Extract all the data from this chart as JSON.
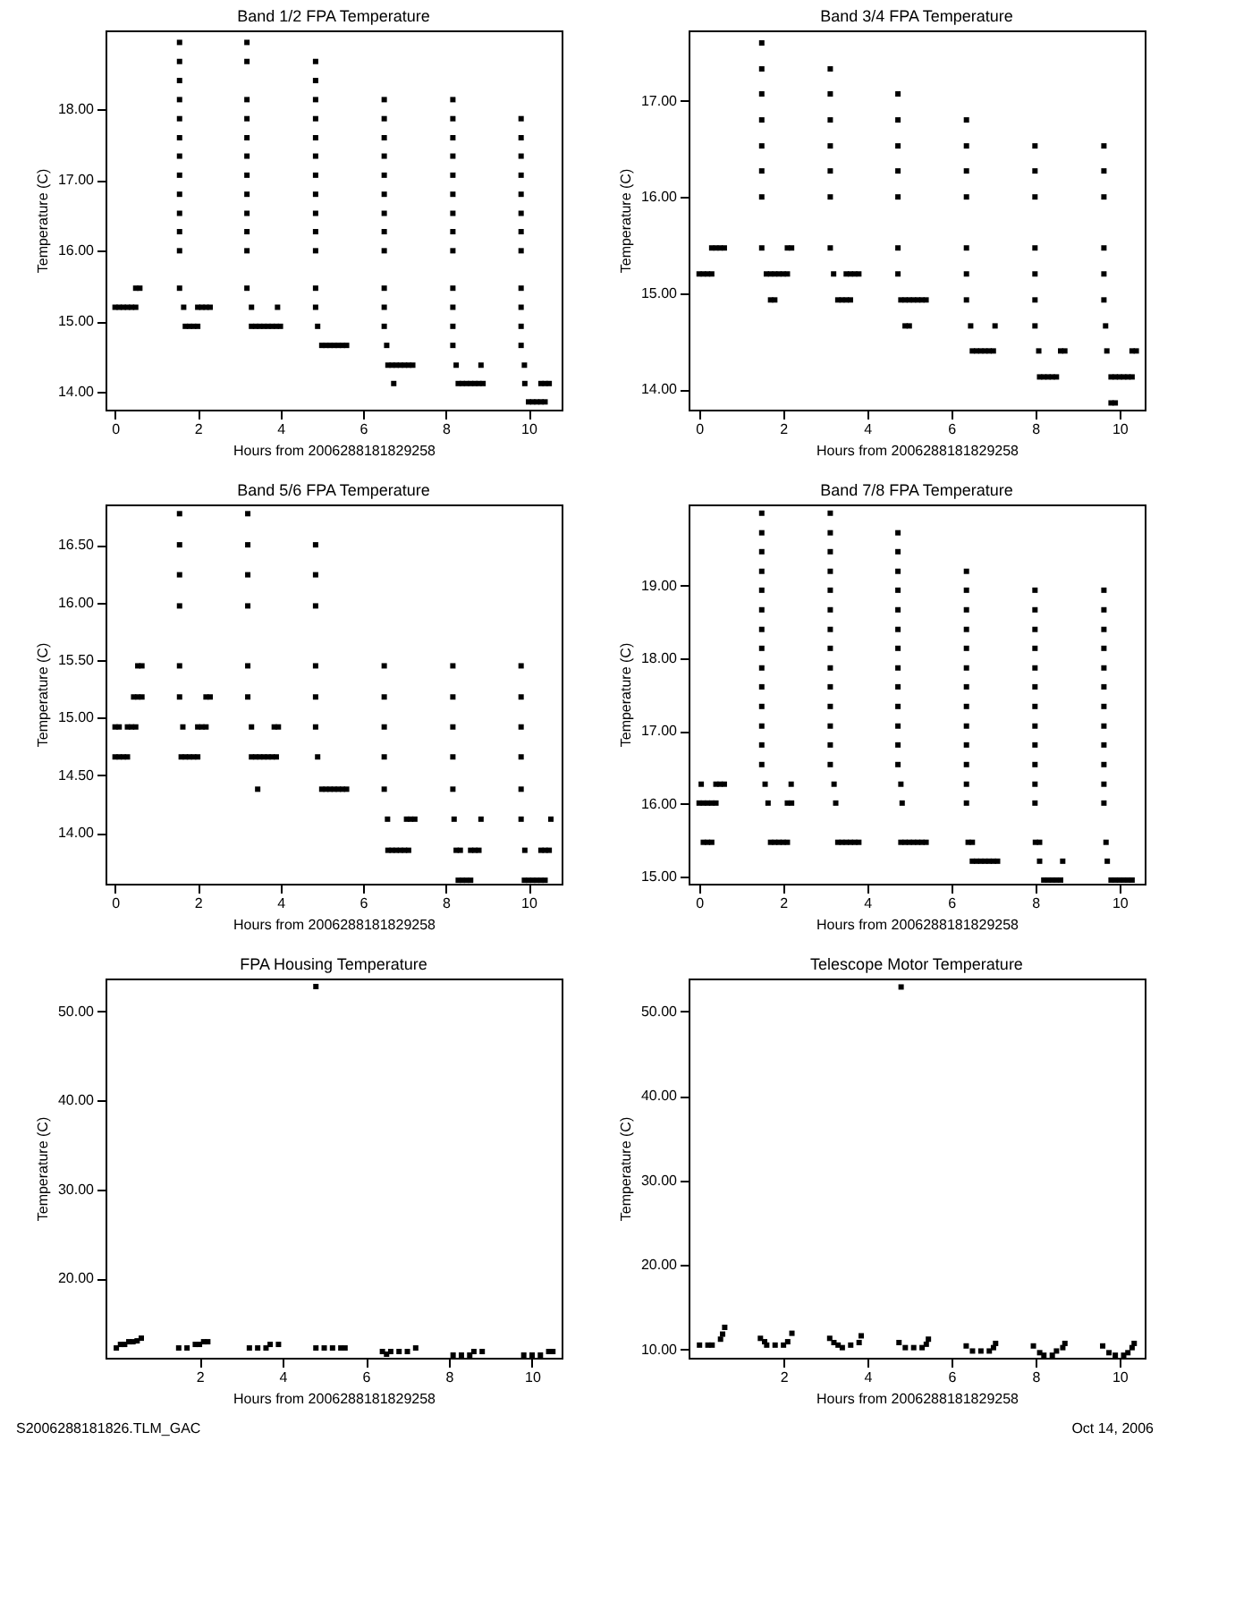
{
  "chart_data": [
    {
      "type": "scatter",
      "title": "Band 1/2 FPA Temperature",
      "xlabel": "Hours from 2006288181829258",
      "ylabel": "Temperature (C)",
      "marker": "square",
      "xlim": [
        -0.23,
        10.8
      ],
      "xticks": [
        0,
        2,
        4,
        6,
        8,
        10
      ],
      "ylim": [
        13.75,
        19.12
      ],
      "yticks": [
        {
          "value": 14,
          "label": "14.00"
        },
        {
          "value": 15,
          "label": "15.00"
        },
        {
          "value": 16,
          "label": "16.00"
        },
        {
          "value": 17,
          "label": "17.00"
        },
        {
          "value": 18,
          "label": "18.00"
        }
      ],
      "series": [
        {
          "color": "#000000",
          "x": [
            0,
            0.1,
            0.2,
            0.3,
            0.4,
            0.5,
            0.5,
            0.6
          ],
          "values": [
            15.2,
            15.2,
            15.2,
            15.2,
            15.2,
            15.2,
            15.47,
            15.47
          ]
        },
        {
          "color": "#000000",
          "x": [
            1.56,
            1.56,
            1.56,
            1.56,
            1.56,
            1.56,
            1.56,
            1.56,
            1.56,
            1.56,
            1.56,
            1.56,
            1.56,
            1.66,
            1.7,
            1.8,
            1.9,
            2.0,
            2.0,
            2.1,
            2.2,
            2.3
          ],
          "values": [
            16.0,
            16.27,
            16.53,
            16.8,
            17.07,
            17.34,
            17.6,
            17.87,
            18.14,
            18.41,
            18.68,
            18.95,
            15.47,
            15.2,
            14.93,
            14.93,
            14.93,
            14.93,
            15.2,
            15.2,
            15.2,
            15.2
          ]
        },
        {
          "color": "#000000",
          "x": [
            3.19,
            3.19,
            3.19,
            3.19,
            3.19,
            3.19,
            3.19,
            3.19,
            3.19,
            3.19,
            3.19,
            3.19,
            3.3,
            3.3,
            3.4,
            3.5,
            3.6,
            3.7,
            3.8,
            3.9,
            4.0,
            3.93
          ],
          "values": [
            18.95,
            18.68,
            18.14,
            17.87,
            17.6,
            17.34,
            17.07,
            16.8,
            16.53,
            16.27,
            16.0,
            15.47,
            15.2,
            14.93,
            14.93,
            14.93,
            14.93,
            14.93,
            14.93,
            14.93,
            14.93,
            15.2
          ]
        },
        {
          "color": "#000000",
          "x": [
            4.85,
            4.85,
            4.85,
            4.85,
            4.85,
            4.85,
            4.85,
            4.85,
            4.85,
            4.85,
            4.85,
            4.85,
            4.85,
            4.9,
            5.0,
            5.1,
            5.2,
            5.3,
            5.4,
            5.5,
            5.6
          ],
          "values": [
            18.68,
            18.41,
            18.14,
            17.87,
            17.6,
            17.34,
            17.07,
            16.8,
            16.53,
            16.27,
            16.0,
            15.47,
            15.2,
            14.93,
            14.66,
            14.66,
            14.66,
            14.66,
            14.66,
            14.66,
            14.66
          ]
        },
        {
          "color": "#000000",
          "x": [
            6.51,
            6.51,
            6.51,
            6.51,
            6.51,
            6.51,
            6.51,
            6.51,
            6.51,
            6.51,
            6.51,
            6.51,
            6.57,
            6.6,
            6.7,
            6.8,
            6.9,
            7.0,
            7.1,
            7.2,
            6.74
          ],
          "values": [
            18.14,
            17.87,
            17.6,
            17.34,
            17.07,
            16.8,
            16.53,
            16.27,
            16.0,
            15.47,
            15.2,
            14.93,
            14.66,
            14.38,
            14.38,
            14.38,
            14.38,
            14.38,
            14.38,
            14.38,
            14.12
          ]
        },
        {
          "color": "#000000",
          "x": [
            8.17,
            8.17,
            8.17,
            8.17,
            8.17,
            8.17,
            8.17,
            8.17,
            8.17,
            8.17,
            8.17,
            8.17,
            8.17,
            8.25,
            8.3,
            8.4,
            8.5,
            8.6,
            8.7,
            8.8,
            8.9,
            8.85
          ],
          "values": [
            18.14,
            17.87,
            17.6,
            17.34,
            17.07,
            16.8,
            16.53,
            16.27,
            16.0,
            15.47,
            15.2,
            14.93,
            14.66,
            14.38,
            14.12,
            14.12,
            14.12,
            14.12,
            14.12,
            14.12,
            14.12,
            14.38
          ]
        },
        {
          "color": "#000000",
          "x": [
            9.82,
            9.82,
            9.82,
            9.82,
            9.82,
            9.82,
            9.82,
            9.82,
            9.82,
            9.82,
            9.82,
            9.82,
            9.9,
            9.91,
            10.0,
            10.1,
            10.2,
            10.3,
            10.4,
            10.3,
            10.4,
            10.5
          ],
          "values": [
            17.87,
            17.6,
            17.34,
            17.07,
            16.8,
            16.53,
            16.27,
            16.0,
            15.47,
            15.2,
            14.93,
            14.66,
            14.38,
            14.12,
            13.86,
            13.86,
            13.86,
            13.86,
            13.86,
            14.12,
            14.12,
            14.12
          ]
        }
      ]
    },
    {
      "type": "scatter",
      "title": "Band 3/4 FPA Temperature",
      "xlabel": "Hours from 2006288181829258",
      "ylabel": "Temperature (C)",
      "marker": "square",
      "xlim": [
        -0.25,
        10.6
      ],
      "xticks": [
        0,
        2,
        4,
        6,
        8,
        10
      ],
      "ylim": [
        13.79,
        17.73
      ],
      "yticks": [
        {
          "value": 14,
          "label": "14.00"
        },
        {
          "value": 15,
          "label": "15.00"
        },
        {
          "value": 16,
          "label": "16.00"
        },
        {
          "value": 17,
          "label": "17.00"
        }
      ],
      "series": [
        {
          "color": "#000000",
          "x": [
            0,
            0.1,
            0.2,
            0.3,
            0.3,
            0.4,
            0.5,
            0.6
          ],
          "values": [
            15.2,
            15.2,
            15.2,
            15.2,
            15.47,
            15.47,
            15.47,
            15.47
          ]
        },
        {
          "color": "#000000",
          "x": [
            1.49,
            1.49,
            1.49,
            1.49,
            1.49,
            1.49,
            1.49,
            1.49,
            1.6,
            1.7,
            1.8,
            1.9,
            2.0,
            2.1,
            1.7,
            1.8,
            2.1,
            2.2
          ],
          "values": [
            17.6,
            17.33,
            17.07,
            16.8,
            16.53,
            16.27,
            16.0,
            15.47,
            15.2,
            15.2,
            15.2,
            15.2,
            15.2,
            15.2,
            14.93,
            14.93,
            15.47,
            15.47
          ]
        },
        {
          "color": "#000000",
          "x": [
            3.12,
            3.12,
            3.12,
            3.12,
            3.12,
            3.12,
            3.12,
            3.2,
            3.3,
            3.4,
            3.5,
            3.6,
            3.5,
            3.6,
            3.7,
            3.8
          ],
          "values": [
            17.33,
            17.07,
            16.8,
            16.53,
            16.27,
            16.0,
            15.47,
            15.2,
            14.93,
            14.93,
            14.93,
            14.93,
            15.2,
            15.2,
            15.2,
            15.2
          ]
        },
        {
          "color": "#000000",
          "x": [
            4.73,
            4.73,
            4.73,
            4.73,
            4.73,
            4.73,
            4.73,
            4.8,
            4.9,
            5.0,
            5.1,
            5.2,
            5.3,
            5.4,
            4.9,
            5.0
          ],
          "values": [
            17.07,
            16.8,
            16.53,
            16.27,
            16.0,
            15.47,
            15.2,
            14.93,
            14.93,
            14.93,
            14.93,
            14.93,
            14.93,
            14.93,
            14.66,
            14.66
          ]
        },
        {
          "color": "#000000",
          "x": [
            6.36,
            6.36,
            6.36,
            6.36,
            6.36,
            6.36,
            6.36,
            6.46,
            7.04,
            6.5,
            6.6,
            6.7,
            6.8,
            6.9,
            7.0
          ],
          "values": [
            16.8,
            16.53,
            16.27,
            16.0,
            15.47,
            15.2,
            14.93,
            14.66,
            14.66,
            14.4,
            14.4,
            14.4,
            14.4,
            14.4,
            14.4
          ]
        },
        {
          "color": "#000000",
          "x": [
            7.99,
            7.99,
            7.99,
            7.99,
            7.99,
            7.99,
            7.99,
            8.08,
            8.1,
            8.2,
            8.3,
            8.4,
            8.5,
            8.6,
            8.7
          ],
          "values": [
            16.53,
            16.27,
            16.0,
            15.47,
            15.2,
            14.93,
            14.66,
            14.4,
            14.13,
            14.13,
            14.13,
            14.13,
            14.13,
            14.4,
            14.4
          ]
        },
        {
          "color": "#000000",
          "x": [
            9.63,
            9.63,
            9.63,
            9.63,
            9.63,
            9.63,
            9.67,
            9.7,
            9.8,
            9.9,
            10.0,
            10.1,
            10.2,
            10.3,
            9.8,
            9.9,
            10.3,
            10.4
          ],
          "values": [
            16.53,
            16.27,
            16.0,
            15.47,
            15.2,
            14.93,
            14.66,
            14.4,
            14.13,
            14.13,
            14.13,
            14.13,
            14.13,
            14.13,
            13.86,
            13.86,
            14.4,
            14.4
          ]
        }
      ]
    },
    {
      "type": "scatter",
      "title": "Band 5/6 FPA Temperature",
      "xlabel": "Hours from 2006288181829258",
      "ylabel": "Temperature (C)",
      "marker": "square",
      "xlim": [
        -0.23,
        10.8
      ],
      "xticks": [
        0,
        2,
        4,
        6,
        8,
        10
      ],
      "ylim": [
        13.56,
        16.85
      ],
      "yticks": [
        {
          "value": 14,
          "label": "14.00"
        },
        {
          "value": 14.5,
          "label": "14.50"
        },
        {
          "value": 15,
          "label": "15.00"
        },
        {
          "value": 15.5,
          "label": "15.50"
        },
        {
          "value": 16,
          "label": "16.00"
        },
        {
          "value": 16.5,
          "label": "16.50"
        }
      ],
      "series": [
        {
          "color": "#000000",
          "x": [
            0,
            0.1,
            0.3,
            0.4,
            0.5,
            0,
            0.1,
            0.2,
            0.3,
            0.45,
            0.55,
            0.65,
            0.55,
            0.65
          ],
          "values": [
            14.92,
            14.92,
            14.92,
            14.92,
            14.92,
            14.66,
            14.66,
            14.66,
            14.66,
            15.18,
            15.18,
            15.18,
            15.45,
            15.45
          ]
        },
        {
          "color": "#000000",
          "x": [
            1.56,
            1.56,
            1.56,
            1.56,
            1.56,
            1.56,
            1.64,
            1.6,
            1.7,
            1.8,
            1.9,
            2.0,
            2.0,
            2.1,
            2.2,
            2.2,
            2.3
          ],
          "values": [
            16.77,
            16.5,
            16.24,
            15.97,
            15.45,
            15.18,
            14.92,
            14.66,
            14.66,
            14.66,
            14.66,
            14.66,
            14.92,
            14.92,
            14.92,
            15.18,
            15.18
          ]
        },
        {
          "color": "#000000",
          "x": [
            3.21,
            3.21,
            3.21,
            3.21,
            3.21,
            3.21,
            3.3,
            3.3,
            3.4,
            3.5,
            3.6,
            3.7,
            3.8,
            3.9,
            3.45,
            3.85,
            3.95
          ],
          "values": [
            16.77,
            16.5,
            16.24,
            15.97,
            15.45,
            15.18,
            14.92,
            14.66,
            14.66,
            14.66,
            14.66,
            14.66,
            14.66,
            14.66,
            14.38,
            14.92,
            14.92
          ]
        },
        {
          "color": "#000000",
          "x": [
            4.85,
            4.85,
            4.85,
            4.85,
            4.85,
            4.85,
            4.9,
            5.0,
            5.1,
            5.2,
            5.3,
            5.4,
            5.5,
            5.6
          ],
          "values": [
            16.5,
            16.24,
            15.97,
            15.45,
            15.18,
            14.92,
            14.66,
            14.38,
            14.38,
            14.38,
            14.38,
            14.38,
            14.38,
            14.38
          ]
        },
        {
          "color": "#000000",
          "x": [
            6.51,
            6.51,
            6.51,
            6.51,
            6.51,
            6.59,
            7.05,
            7.15,
            7.25,
            6.6,
            6.7,
            6.8,
            6.9,
            7.0,
            7.1
          ],
          "values": [
            15.45,
            15.18,
            14.92,
            14.66,
            14.38,
            14.12,
            14.12,
            14.12,
            14.12,
            13.85,
            13.85,
            13.85,
            13.85,
            13.85,
            13.85
          ]
        },
        {
          "color": "#000000",
          "x": [
            8.17,
            8.17,
            8.17,
            8.17,
            8.17,
            8.2,
            8.25,
            8.35,
            8.3,
            8.4,
            8.5,
            8.6,
            8.6,
            8.7,
            8.8,
            8.85
          ],
          "values": [
            15.45,
            15.18,
            14.92,
            14.66,
            14.38,
            14.12,
            13.85,
            13.85,
            13.59,
            13.59,
            13.59,
            13.59,
            13.85,
            13.85,
            13.85,
            14.12
          ]
        },
        {
          "color": "#000000",
          "x": [
            9.82,
            9.82,
            9.82,
            9.82,
            9.82,
            9.82,
            9.91,
            9.9,
            10.0,
            10.1,
            10.2,
            10.3,
            10.4,
            10.3,
            10.4,
            10.5,
            10.54
          ],
          "values": [
            15.45,
            15.18,
            14.92,
            14.66,
            14.38,
            14.12,
            13.85,
            13.59,
            13.59,
            13.59,
            13.59,
            13.59,
            13.59,
            13.85,
            13.85,
            13.85,
            14.12
          ]
        }
      ]
    },
    {
      "type": "scatter",
      "title": "Band 7/8 FPA Temperature",
      "xlabel": "Hours from 2006288181829258",
      "ylabel": "Temperature (C)",
      "marker": "square",
      "xlim": [
        -0.25,
        10.6
      ],
      "xticks": [
        0,
        2,
        4,
        6,
        8,
        10
      ],
      "ylim": [
        14.9,
        20.12
      ],
      "yticks": [
        {
          "value": 15,
          "label": "15.00"
        },
        {
          "value": 16,
          "label": "16.00"
        },
        {
          "value": 17,
          "label": "17.00"
        },
        {
          "value": 18,
          "label": "18.00"
        },
        {
          "value": 19,
          "label": "19.00"
        }
      ],
      "series": [
        {
          "color": "#000000",
          "x": [
            0.05,
            0.4,
            0.5,
            0.6,
            0,
            0.1,
            0.2,
            0.3,
            0.4,
            0.1,
            0.2,
            0.3
          ],
          "values": [
            16.27,
            16.27,
            16.27,
            16.27,
            16.01,
            16.01,
            16.01,
            16.01,
            16.01,
            15.47,
            15.47,
            15.47
          ]
        },
        {
          "color": "#000000",
          "x": [
            1.49,
            1.49,
            1.49,
            1.49,
            1.49,
            1.49,
            1.49,
            1.49,
            1.49,
            1.49,
            1.49,
            1.49,
            1.49,
            1.49,
            1.57,
            1.64,
            1.7,
            1.8,
            1.9,
            2.0,
            2.1,
            2.19,
            2.1,
            2.2
          ],
          "values": [
            20.0,
            19.73,
            19.47,
            19.2,
            18.94,
            18.67,
            18.4,
            18.14,
            17.87,
            17.61,
            17.34,
            17.07,
            16.81,
            16.54,
            16.27,
            16.01,
            15.47,
            15.47,
            15.47,
            15.47,
            15.47,
            16.27,
            16.01,
            16.01
          ]
        },
        {
          "color": "#000000",
          "x": [
            3.12,
            3.12,
            3.12,
            3.12,
            3.12,
            3.12,
            3.12,
            3.12,
            3.12,
            3.12,
            3.12,
            3.12,
            3.12,
            3.12,
            3.21,
            3.25,
            3.3,
            3.4,
            3.5,
            3.6,
            3.7,
            3.8
          ],
          "values": [
            20.0,
            19.73,
            19.47,
            19.2,
            18.94,
            18.67,
            18.4,
            18.14,
            17.87,
            17.61,
            17.34,
            17.07,
            16.81,
            16.54,
            16.27,
            16.01,
            15.47,
            15.47,
            15.47,
            15.47,
            15.47,
            15.47
          ]
        },
        {
          "color": "#000000",
          "x": [
            4.73,
            4.73,
            4.73,
            4.73,
            4.73,
            4.73,
            4.73,
            4.73,
            4.73,
            4.73,
            4.73,
            4.73,
            4.73,
            4.8,
            4.83,
            4.8,
            4.9,
            5.0,
            5.1,
            5.2,
            5.3,
            5.4
          ],
          "values": [
            19.73,
            19.47,
            19.2,
            18.94,
            18.67,
            18.4,
            18.14,
            17.87,
            17.61,
            17.34,
            17.07,
            16.81,
            16.54,
            16.27,
            16.01,
            15.47,
            15.47,
            15.47,
            15.47,
            15.47,
            15.47,
            15.47
          ]
        },
        {
          "color": "#000000",
          "x": [
            6.36,
            6.36,
            6.36,
            6.36,
            6.36,
            6.36,
            6.36,
            6.36,
            6.36,
            6.36,
            6.36,
            6.36,
            6.36,
            6.4,
            6.5,
            6.5,
            6.6,
            6.7,
            6.8,
            6.9,
            7.0,
            7.1
          ],
          "values": [
            19.2,
            18.94,
            18.67,
            18.4,
            18.14,
            17.87,
            17.61,
            17.34,
            17.07,
            16.81,
            16.54,
            16.27,
            16.01,
            15.47,
            15.47,
            15.21,
            15.21,
            15.21,
            15.21,
            15.21,
            15.21,
            15.21
          ]
        },
        {
          "color": "#000000",
          "x": [
            7.99,
            7.99,
            7.99,
            7.99,
            7.99,
            7.99,
            7.99,
            7.99,
            7.99,
            7.99,
            7.99,
            7.99,
            8.0,
            8.1,
            8.1,
            8.2,
            8.3,
            8.4,
            8.5,
            8.6,
            8.65
          ],
          "values": [
            18.94,
            18.67,
            18.4,
            18.14,
            17.87,
            17.61,
            17.34,
            17.07,
            16.81,
            16.54,
            16.27,
            16.01,
            15.47,
            15.47,
            15.21,
            14.95,
            14.95,
            14.95,
            14.95,
            14.95,
            15.21
          ]
        },
        {
          "color": "#000000",
          "x": [
            9.63,
            9.63,
            9.63,
            9.63,
            9.63,
            9.63,
            9.63,
            9.63,
            9.63,
            9.63,
            9.63,
            9.63,
            9.68,
            9.71,
            9.8,
            9.9,
            10.0,
            10.1,
            10.2,
            10.3
          ],
          "values": [
            18.94,
            18.67,
            18.4,
            18.14,
            17.87,
            17.61,
            17.34,
            17.07,
            16.81,
            16.54,
            16.27,
            16.01,
            15.47,
            15.21,
            14.95,
            14.95,
            14.95,
            14.95,
            14.95,
            14.95
          ]
        }
      ]
    },
    {
      "type": "scatter",
      "title": "FPA Housing Temperature",
      "xlabel": "Hours from 2006288181829258",
      "ylabel": "Temperature (C)",
      "marker": "square",
      "xlim": [
        -0.26,
        10.71
      ],
      "xticks": [
        2,
        4,
        6,
        8,
        10
      ],
      "ylim": [
        11.1,
        53.7
      ],
      "yticks": [
        {
          "value": 20,
          "label": "20.00"
        },
        {
          "value": 30,
          "label": "30.00"
        },
        {
          "value": 40,
          "label": "40.00"
        },
        {
          "value": 50,
          "label": "50.00"
        }
      ],
      "annotations": [
        "S2006288181826.TLM_GAC"
      ],
      "series": [
        {
          "color": "#000000",
          "x": [
            0,
            0.1,
            0.2,
            0.3,
            0.4,
            0.5,
            0.6,
            1.5,
            1.7,
            1.9,
            2.0,
            2.1,
            2.2,
            3.2,
            3.4,
            3.6,
            3.7,
            3.9,
            4.8,
            4.8,
            5.0,
            5.2,
            5.4,
            5.5,
            6.4,
            6.5,
            6.6,
            6.8,
            7.0,
            7.2,
            8.1,
            8.3,
            8.5,
            8.6,
            8.8,
            9.8,
            10.0,
            10.2,
            10.4,
            10.5
          ],
          "values": [
            12.2,
            12.6,
            12.6,
            12.9,
            12.9,
            13.0,
            13.3,
            12.2,
            12.2,
            12.6,
            12.6,
            12.9,
            12.9,
            12.2,
            12.2,
            12.2,
            12.6,
            12.6,
            52.8,
            12.2,
            12.2,
            12.2,
            12.2,
            12.2,
            11.8,
            11.5,
            11.8,
            11.8,
            11.8,
            12.2,
            11.4,
            11.4,
            11.4,
            11.8,
            11.8,
            11.4,
            11.4,
            11.4,
            11.8,
            11.8
          ]
        }
      ]
    },
    {
      "type": "scatter",
      "title": "Telescope Motor Temperature",
      "xlabel": "Hours from 2006288181829258",
      "ylabel": "Temperature (C)",
      "marker": "square",
      "xlim": [
        -0.26,
        10.6
      ],
      "xticks": [
        2,
        4,
        6,
        8,
        10
      ],
      "ylim": [
        9.0,
        53.9
      ],
      "yticks": [
        {
          "value": 10,
          "label": "10.00"
        },
        {
          "value": 20,
          "label": "20.00"
        },
        {
          "value": 30,
          "label": "30.00"
        },
        {
          "value": 40,
          "label": "40.00"
        },
        {
          "value": 50,
          "label": "50.00"
        }
      ],
      "annotations": [
        "Oct 14, 2006"
      ],
      "series": [
        {
          "color": "#000000",
          "x": [
            0,
            0.2,
            0.3,
            0.5,
            0.55,
            0.6,
            1.45,
            1.55,
            1.6,
            1.8,
            2.0,
            2.1,
            2.2,
            3.1,
            3.2,
            3.3,
            3.4,
            3.6,
            3.8,
            3.85,
            4.75,
            4.8,
            4.9,
            5.1,
            5.3,
            5.4,
            5.45,
            6.35,
            6.5,
            6.7,
            6.9,
            7.0,
            7.05,
            7.95,
            8.1,
            8.2,
            8.4,
            8.5,
            8.65,
            8.7,
            9.6,
            9.75,
            9.9,
            10.1,
            10.2,
            10.3,
            10.35
          ],
          "values": [
            10.5,
            10.5,
            10.5,
            11.2,
            11.8,
            12.6,
            11.3,
            10.9,
            10.5,
            10.5,
            10.5,
            10.9,
            11.9,
            11.3,
            10.8,
            10.5,
            10.2,
            10.5,
            10.8,
            11.6,
            10.8,
            52.9,
            10.2,
            10.2,
            10.2,
            10.6,
            11.2,
            10.4,
            9.8,
            9.8,
            9.8,
            10.2,
            10.7,
            10.4,
            9.6,
            9.3,
            9.3,
            9.8,
            10.2,
            10.7,
            10.4,
            9.6,
            9.3,
            9.3,
            9.6,
            10.2,
            10.7
          ]
        }
      ]
    }
  ]
}
